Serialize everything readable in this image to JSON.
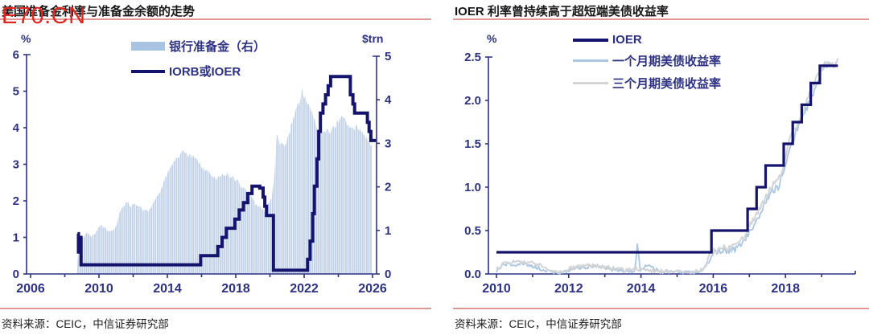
{
  "watermark": {
    "text": "E70.CN",
    "color": "#e2251f"
  },
  "source_note": "资料来源：CEIC，中信证券研究部",
  "colors": {
    "navy": "#14146e",
    "navy_text": "#2d3184",
    "area_fill": "#bfd0e8",
    "area_swatch": "#a9c4e2",
    "light_blue": "#a9c6e4",
    "gray": "#d2d4d6",
    "divider_red": "#e59693",
    "title_text": "#161616",
    "source_text": "#1c1c1c"
  },
  "chart_data": [
    {
      "type": "area",
      "title": "美国准备金利率与准备金余额的走势",
      "left_axis": {
        "label": "%",
        "min": 0,
        "max": 6,
        "ticks": [
          0,
          1,
          2,
          3,
          4,
          5,
          6
        ],
        "tick_labels": [
          "0",
          "1",
          "2",
          "3",
          "4",
          "5",
          "6"
        ]
      },
      "right_axis": {
        "label": "$trn",
        "min": 0,
        "max": 5,
        "ticks": [
          0,
          1,
          2,
          3,
          4,
          5
        ],
        "tick_labels": [
          "0",
          "1",
          "2",
          "3",
          "4",
          "5"
        ]
      },
      "x_axis": {
        "min": 2006,
        "max": 2026.5,
        "major_ticks": [
          2006,
          2010,
          2014,
          2018,
          2022,
          2026
        ],
        "minor_ticks": [
          2008,
          2012,
          2016,
          2020,
          2024
        ]
      },
      "legend": [
        {
          "label": "银行准备金（右）",
          "type": "area",
          "color_key": "area_swatch"
        },
        {
          "label": "IORB或IOER",
          "type": "line",
          "color_key": "navy"
        }
      ],
      "series": {
        "reserves": {
          "name": "银行准备金（右）",
          "axis": "right",
          "points": [
            [
              2008.7,
              0.05
            ],
            [
              2008.75,
              0.35
            ],
            [
              2008.85,
              0.55
            ],
            [
              2008.95,
              0.75
            ],
            [
              2009.1,
              0.85
            ],
            [
              2009.3,
              0.95
            ],
            [
              2009.5,
              0.85
            ],
            [
              2009.7,
              0.9
            ],
            [
              2009.9,
              1.0
            ],
            [
              2010.1,
              1.1
            ],
            [
              2010.3,
              1.05
            ],
            [
              2010.5,
              1.0
            ],
            [
              2010.7,
              0.98
            ],
            [
              2010.9,
              1.0
            ],
            [
              2011.1,
              1.25
            ],
            [
              2011.3,
              1.5
            ],
            [
              2011.5,
              1.6
            ],
            [
              2011.7,
              1.62
            ],
            [
              2011.9,
              1.55
            ],
            [
              2012.1,
              1.6
            ],
            [
              2012.3,
              1.55
            ],
            [
              2012.5,
              1.5
            ],
            [
              2012.7,
              1.45
            ],
            [
              2012.9,
              1.42
            ],
            [
              2013.1,
              1.6
            ],
            [
              2013.3,
              1.75
            ],
            [
              2013.5,
              1.85
            ],
            [
              2013.7,
              2.0
            ],
            [
              2013.9,
              2.2
            ],
            [
              2014.1,
              2.4
            ],
            [
              2014.3,
              2.55
            ],
            [
              2014.5,
              2.65
            ],
            [
              2014.7,
              2.7
            ],
            [
              2014.9,
              2.8
            ],
            [
              2015.1,
              2.75
            ],
            [
              2015.3,
              2.7
            ],
            [
              2015.5,
              2.68
            ],
            [
              2015.7,
              2.62
            ],
            [
              2015.9,
              2.55
            ],
            [
              2016.1,
              2.4
            ],
            [
              2016.3,
              2.35
            ],
            [
              2016.5,
              2.3
            ],
            [
              2016.7,
              2.22
            ],
            [
              2016.9,
              2.18
            ],
            [
              2017.1,
              2.25
            ],
            [
              2017.3,
              2.3
            ],
            [
              2017.5,
              2.28
            ],
            [
              2017.7,
              2.25
            ],
            [
              2017.9,
              2.2
            ],
            [
              2018.1,
              2.12
            ],
            [
              2018.3,
              2.05
            ],
            [
              2018.5,
              1.95
            ],
            [
              2018.7,
              1.85
            ],
            [
              2018.9,
              1.75
            ],
            [
              2019.1,
              1.65
            ],
            [
              2019.3,
              1.55
            ],
            [
              2019.5,
              1.5
            ],
            [
              2019.7,
              1.45
            ],
            [
              2019.9,
              1.6
            ],
            [
              2020.1,
              1.7
            ],
            [
              2020.25,
              2.2
            ],
            [
              2020.4,
              3.2
            ],
            [
              2020.55,
              3.05
            ],
            [
              2020.7,
              2.95
            ],
            [
              2020.9,
              2.9
            ],
            [
              2021.1,
              3.2
            ],
            [
              2021.3,
              3.55
            ],
            [
              2021.5,
              3.75
            ],
            [
              2021.7,
              3.9
            ],
            [
              2021.9,
              4.2
            ],
            [
              2022.0,
              4.1
            ],
            [
              2022.2,
              3.95
            ],
            [
              2022.4,
              3.8
            ],
            [
              2022.6,
              3.55
            ],
            [
              2022.8,
              3.3
            ],
            [
              2023.0,
              3.2
            ],
            [
              2023.2,
              3.3
            ],
            [
              2023.4,
              3.25
            ],
            [
              2023.6,
              3.3
            ],
            [
              2023.8,
              3.4
            ],
            [
              2024.0,
              3.5
            ],
            [
              2024.2,
              3.6
            ],
            [
              2024.4,
              3.55
            ],
            [
              2024.6,
              3.45
            ],
            [
              2024.8,
              3.3
            ],
            [
              2025.0,
              3.4
            ],
            [
              2025.2,
              3.35
            ],
            [
              2025.4,
              3.2
            ],
            [
              2025.6,
              3.1
            ],
            [
              2025.8,
              3.05
            ],
            [
              2025.95,
              2.95
            ]
          ]
        },
        "iorb": {
          "name": "IORB或IOER",
          "axis": "left",
          "step": true,
          "end_x": 2026.2,
          "points": [
            [
              2008.75,
              1.1
            ],
            [
              2008.8,
              0.6
            ],
            [
              2008.85,
              1.0
            ],
            [
              2008.95,
              0.25
            ],
            [
              2015.95,
              0.5
            ],
            [
              2016.95,
              0.75
            ],
            [
              2017.2,
              1.0
            ],
            [
              2017.45,
              1.25
            ],
            [
              2017.95,
              1.5
            ],
            [
              2018.2,
              1.75
            ],
            [
              2018.45,
              1.95
            ],
            [
              2018.7,
              2.2
            ],
            [
              2018.95,
              2.4
            ],
            [
              2019.4,
              2.35
            ],
            [
              2019.6,
              2.1
            ],
            [
              2019.7,
              1.85
            ],
            [
              2019.8,
              1.6
            ],
            [
              2020.2,
              0.1
            ],
            [
              2022.2,
              0.4
            ],
            [
              2022.35,
              0.9
            ],
            [
              2022.5,
              1.65
            ],
            [
              2022.6,
              2.4
            ],
            [
              2022.75,
              3.15
            ],
            [
              2022.85,
              3.9
            ],
            [
              2022.95,
              4.4
            ],
            [
              2023.1,
              4.65
            ],
            [
              2023.25,
              4.9
            ],
            [
              2023.4,
              5.15
            ],
            [
              2023.55,
              5.4
            ],
            [
              2024.7,
              4.9
            ],
            [
              2024.85,
              4.65
            ],
            [
              2024.95,
              4.4
            ],
            [
              2025.7,
              4.15
            ],
            [
              2025.8,
              3.9
            ],
            [
              2025.9,
              3.65
            ]
          ]
        }
      }
    },
    {
      "type": "line",
      "title": "IOER 利率曾持续高于超短端美债收益率",
      "left_axis": {
        "label": "%",
        "min": 0,
        "max": 2.5,
        "ticks": [
          0,
          0.5,
          1,
          1.5,
          2,
          2.5
        ],
        "tick_labels": [
          "0.0",
          "0.5",
          "1.0",
          "1.5",
          "2.0",
          "2.5"
        ]
      },
      "x_axis": {
        "min": 2009.8,
        "max": 2019.9,
        "major_ticks": [
          2010,
          2012,
          2014,
          2016,
          2018
        ],
        "minor_ticks": [
          2011,
          2013,
          2015,
          2017,
          2019
        ]
      },
      "legend": [
        {
          "label": "IOER",
          "type": "line",
          "color_key": "navy"
        },
        {
          "label": "一个月期美债收益率",
          "type": "line",
          "color_key": "light_blue"
        },
        {
          "label": "三个月期美债收益率",
          "type": "line",
          "color_key": "gray"
        }
      ],
      "series": {
        "ioer": {
          "name": "IOER",
          "step": true,
          "end_x": 2019.45,
          "points": [
            [
              2010,
              0.25
            ],
            [
              2015.95,
              0.5
            ],
            [
              2016.95,
              0.75
            ],
            [
              2017.2,
              1.0
            ],
            [
              2017.45,
              1.25
            ],
            [
              2017.95,
              1.5
            ],
            [
              2018.2,
              1.75
            ],
            [
              2018.45,
              1.95
            ],
            [
              2018.7,
              2.2
            ],
            [
              2018.95,
              2.4
            ]
          ]
        },
        "m1": {
          "name": "一个月期美债收益率",
          "points": [
            [
              2010.0,
              0.03
            ],
            [
              2010.15,
              0.08
            ],
            [
              2010.3,
              0.12
            ],
            [
              2010.5,
              0.1
            ],
            [
              2010.7,
              0.12
            ],
            [
              2010.9,
              0.1
            ],
            [
              2011.1,
              0.08
            ],
            [
              2011.3,
              0.04
            ],
            [
              2011.55,
              0.02
            ],
            [
              2011.8,
              0.01
            ],
            [
              2012.0,
              0.04
            ],
            [
              2012.2,
              0.06
            ],
            [
              2012.4,
              0.08
            ],
            [
              2012.6,
              0.08
            ],
            [
              2012.8,
              0.1
            ],
            [
              2013.0,
              0.06
            ],
            [
              2013.2,
              0.05
            ],
            [
              2013.4,
              0.04
            ],
            [
              2013.6,
              0.03
            ],
            [
              2013.82,
              0.03
            ],
            [
              2013.9,
              0.31
            ],
            [
              2013.98,
              0.05
            ],
            [
              2014.2,
              0.1
            ],
            [
              2014.5,
              0.03
            ],
            [
              2014.8,
              0.03
            ],
            [
              2015.0,
              0.02
            ],
            [
              2015.3,
              0.02
            ],
            [
              2015.6,
              0.01
            ],
            [
              2015.8,
              0.08
            ],
            [
              2015.95,
              0.2
            ],
            [
              2016.1,
              0.25
            ],
            [
              2016.3,
              0.28
            ],
            [
              2016.5,
              0.26
            ],
            [
              2016.7,
              0.3
            ],
            [
              2016.9,
              0.4
            ],
            [
              2017.0,
              0.5
            ],
            [
              2017.2,
              0.6
            ],
            [
              2017.4,
              0.8
            ],
            [
              2017.6,
              0.95
            ],
            [
              2017.8,
              1.0
            ],
            [
              2017.95,
              1.2
            ],
            [
              2018.1,
              1.4
            ],
            [
              2018.3,
              1.65
            ],
            [
              2018.5,
              1.85
            ],
            [
              2018.7,
              2.0
            ],
            [
              2018.9,
              2.2
            ],
            [
              2019.0,
              2.35
            ],
            [
              2019.1,
              2.4
            ],
            [
              2019.2,
              2.42
            ],
            [
              2019.3,
              2.38
            ],
            [
              2019.4,
              2.42
            ]
          ]
        },
        "m3": {
          "name": "三个月期美债收益率",
          "points": [
            [
              2010.0,
              0.06
            ],
            [
              2010.3,
              0.14
            ],
            [
              2010.6,
              0.14
            ],
            [
              2010.9,
              0.13
            ],
            [
              2011.2,
              0.1
            ],
            [
              2011.5,
              0.03
            ],
            [
              2011.8,
              0.02
            ],
            [
              2012.1,
              0.07
            ],
            [
              2012.4,
              0.09
            ],
            [
              2012.7,
              0.1
            ],
            [
              2013.0,
              0.08
            ],
            [
              2013.3,
              0.06
            ],
            [
              2013.6,
              0.04
            ],
            [
              2013.9,
              0.06
            ],
            [
              2014.2,
              0.04
            ],
            [
              2014.5,
              0.03
            ],
            [
              2014.8,
              0.03
            ],
            [
              2015.1,
              0.03
            ],
            [
              2015.4,
              0.02
            ],
            [
              2015.7,
              0.05
            ],
            [
              2015.95,
              0.25
            ],
            [
              2016.2,
              0.3
            ],
            [
              2016.5,
              0.3
            ],
            [
              2016.8,
              0.4
            ],
            [
              2017.0,
              0.55
            ],
            [
              2017.3,
              0.75
            ],
            [
              2017.6,
              1.0
            ],
            [
              2017.9,
              1.15
            ],
            [
              2018.1,
              1.55
            ],
            [
              2018.4,
              1.8
            ],
            [
              2018.7,
              2.1
            ],
            [
              2018.9,
              2.3
            ],
            [
              2019.1,
              2.42
            ],
            [
              2019.3,
              2.4
            ],
            [
              2019.45,
              2.45
            ]
          ]
        }
      }
    }
  ]
}
